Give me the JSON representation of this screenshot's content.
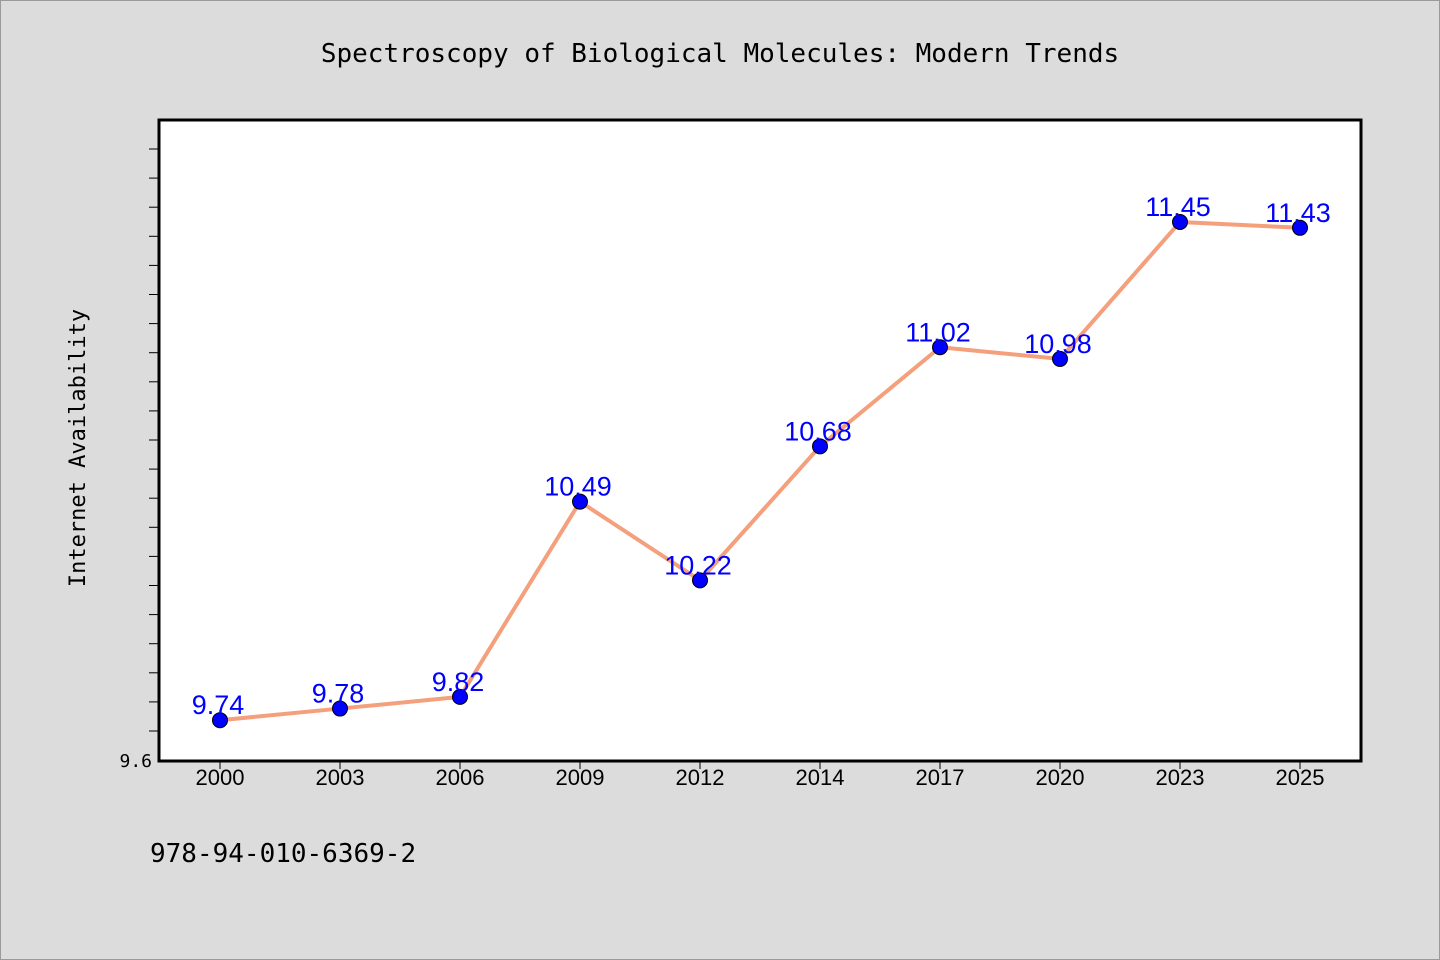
{
  "chart_data": {
    "type": "line",
    "title": "Spectroscopy of Biological Molecules: Modern Trends",
    "xlabel": "",
    "ylabel": "Internet Availability",
    "categories": [
      "2000",
      "2003",
      "2006",
      "2009",
      "2012",
      "2014",
      "2017",
      "2020",
      "2023",
      "2025"
    ],
    "series": [
      {
        "values": [
          9.74,
          9.78,
          9.82,
          10.49,
          10.22,
          10.68,
          11.02,
          10.98,
          11.45,
          11.43
        ],
        "data_labels": [
          "9.74",
          "9.78",
          "9.82",
          "10.49",
          "10.22",
          "10.68",
          "11.02",
          "10.98",
          "11.45",
          "11.43"
        ]
      }
    ],
    "y_tick_labels": [
      "9.6"
    ],
    "ylim": [
      9.6,
      11.8
    ],
    "grid": false,
    "legend": "none",
    "colors": {
      "line": "#f4a07c",
      "marker": "#0000ff",
      "data_label": "#0000ff",
      "plot_background": "#ffffff",
      "page_background": "#dcdcdc"
    }
  },
  "footer": {
    "isbn": "978-94-010-6369-2"
  }
}
